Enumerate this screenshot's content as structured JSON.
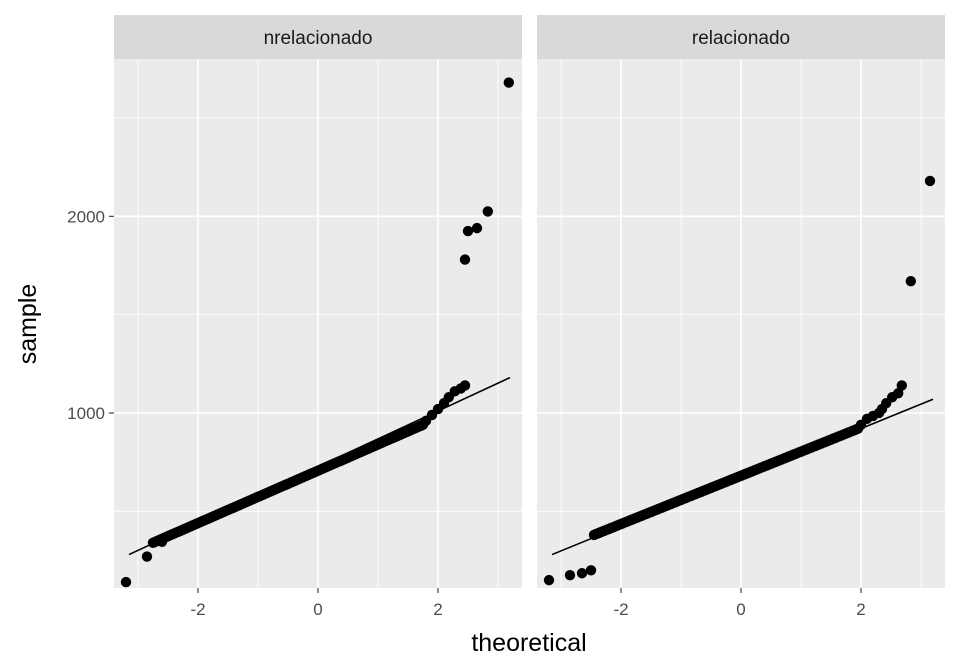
{
  "chart_data": {
    "type": "scatter",
    "subtype": "qq-plot-faceted",
    "xlabel": "theoretical",
    "ylabel": "sample",
    "x_ticks": [
      -2,
      0,
      2
    ],
    "y_ticks": [
      1000,
      2000
    ],
    "xlim": [
      -3.4,
      3.4
    ],
    "ylim": [
      110,
      2800
    ],
    "grid": true,
    "facets": [
      {
        "label": "nrelacionado",
        "ref_line": {
          "x": [
            -3.15,
            3.2
          ],
          "y": [
            280,
            1180
          ]
        },
        "main_segment": {
          "x": [
            -2.75,
            1.75
          ],
          "y": [
            340,
            940
          ],
          "count": 160
        },
        "tail_points": [
          {
            "x": -3.2,
            "y": 140
          },
          {
            "x": -2.85,
            "y": 270
          },
          {
            "x": -2.6,
            "y": 345
          },
          {
            "x": 1.8,
            "y": 960
          },
          {
            "x": 1.9,
            "y": 990
          },
          {
            "x": 2.0,
            "y": 1020
          },
          {
            "x": 2.1,
            "y": 1050
          },
          {
            "x": 2.18,
            "y": 1080
          },
          {
            "x": 2.28,
            "y": 1110
          },
          {
            "x": 2.38,
            "y": 1125
          },
          {
            "x": 2.45,
            "y": 1140
          },
          {
            "x": 2.45,
            "y": 1780
          },
          {
            "x": 2.5,
            "y": 1925
          },
          {
            "x": 2.65,
            "y": 1940
          },
          {
            "x": 2.83,
            "y": 2025
          },
          {
            "x": 3.18,
            "y": 2680
          }
        ]
      },
      {
        "label": "relacionado",
        "ref_line": {
          "x": [
            -3.15,
            3.2
          ],
          "y": [
            280,
            1070
          ]
        },
        "main_segment": {
          "x": [
            -2.45,
            1.95
          ],
          "y": [
            380,
            920
          ],
          "count": 160
        },
        "tail_points": [
          {
            "x": -3.2,
            "y": 150
          },
          {
            "x": -2.85,
            "y": 175
          },
          {
            "x": -2.65,
            "y": 185
          },
          {
            "x": -2.5,
            "y": 200
          },
          {
            "x": 2.0,
            "y": 940
          },
          {
            "x": 2.1,
            "y": 970
          },
          {
            "x": 2.2,
            "y": 985
          },
          {
            "x": 2.3,
            "y": 1000
          },
          {
            "x": 2.35,
            "y": 1020
          },
          {
            "x": 2.42,
            "y": 1050
          },
          {
            "x": 2.52,
            "y": 1080
          },
          {
            "x": 2.62,
            "y": 1100
          },
          {
            "x": 2.68,
            "y": 1140
          },
          {
            "x": 2.83,
            "y": 1670
          },
          {
            "x": 3.15,
            "y": 2180
          }
        ]
      }
    ]
  }
}
